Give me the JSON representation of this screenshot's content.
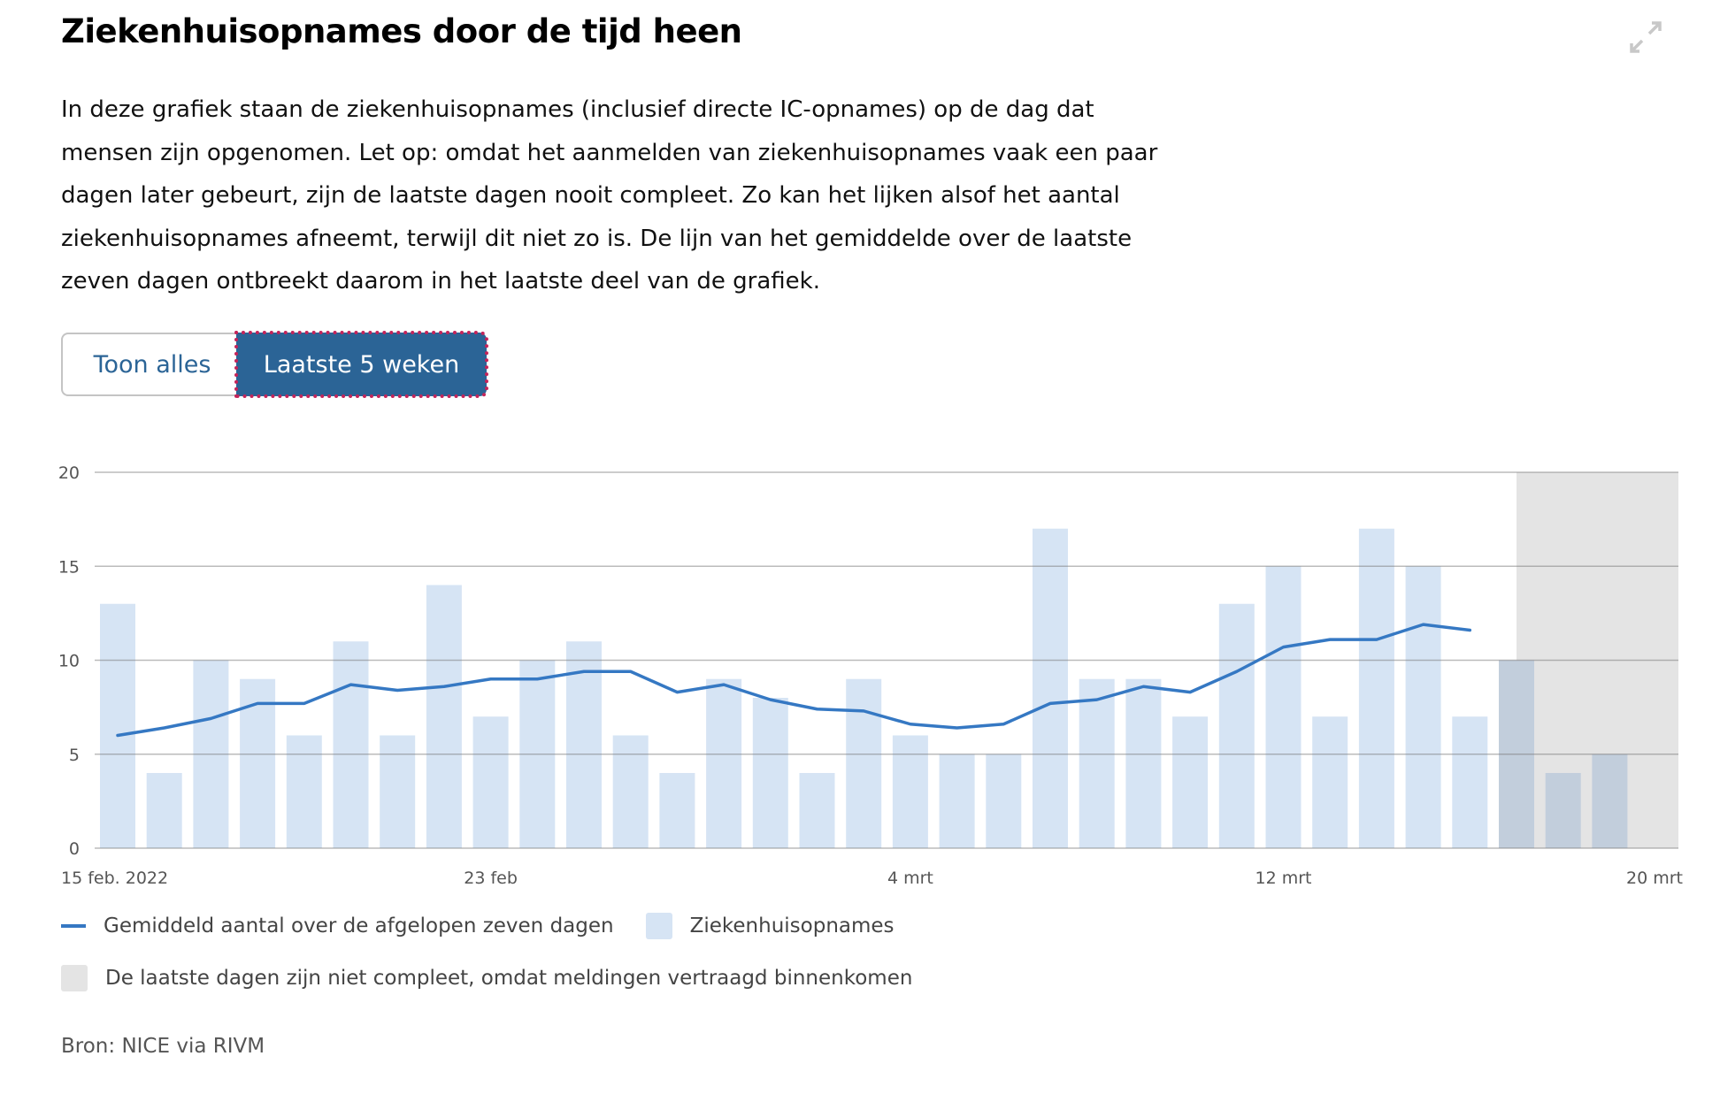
{
  "title": "Ziekenhuisopnames door de tijd heen",
  "description": "In deze grafiek staan de ziekenhuisopnames (inclusief directe IC-opnames) op de dag dat mensen zijn opgenomen. Let op: omdat het aanmelden van ziekenhuisopnames vaak een paar dagen later gebeurt, zijn de laatste dagen nooit compleet. Zo kan het lijken alsof het aantal ziekenhuisopnames afneemt, terwijl dit niet zo is. De lijn van het gemiddelde over de laatste zeven dagen ontbreekt daarom in het laatste deel van de grafiek.",
  "expand_icon": "expand-arrows-icon",
  "buttons": {
    "show_all": "Toon alles",
    "last_5_weeks": "Laatste 5 weken",
    "selected": "last_5_weeks"
  },
  "colors": {
    "bar": "#d6e4f4",
    "line": "#3578c3",
    "incomplete": "#e4e4e4",
    "button_active": "#2b6496",
    "focus": "#c4245a"
  },
  "chart_data": {
    "type": "bar",
    "start_date": "2022-02-15",
    "end_date": "2022-03-19",
    "ylim": [
      0,
      20
    ],
    "yticks": [
      0,
      5,
      10,
      15,
      20
    ],
    "grid": true,
    "xticks": [
      {
        "date": "2022-02-15",
        "label": "15 feb. 2022"
      },
      {
        "date": "2022-02-23",
        "label": "23 feb"
      },
      {
        "date": "2022-03-04",
        "label": "4 mrt"
      },
      {
        "date": "2022-03-12",
        "label": "12 mrt"
      },
      {
        "date": "2022-03-20",
        "label": "20 mrt"
      }
    ],
    "series": [
      {
        "name": "Ziekenhuisopnames",
        "type": "bar",
        "values": [
          13,
          4,
          10,
          9,
          6,
          11,
          6,
          14,
          7,
          10,
          11,
          6,
          4,
          9,
          8,
          4,
          9,
          6,
          5,
          5,
          17,
          9,
          9,
          7,
          13,
          15,
          7,
          17,
          15,
          7,
          10,
          4,
          5
        ]
      },
      {
        "name": "Gemiddeld aantal over de afgelopen zeven dagen",
        "type": "line",
        "values": [
          6.0,
          6.4,
          6.9,
          7.7,
          7.7,
          8.7,
          8.4,
          8.6,
          9.0,
          9.0,
          9.4,
          9.4,
          8.3,
          8.7,
          7.9,
          7.4,
          7.3,
          6.6,
          6.4,
          6.6,
          7.7,
          7.9,
          8.6,
          8.3,
          9.4,
          10.7,
          11.1,
          11.1,
          11.9,
          11.6
        ]
      }
    ],
    "incomplete_from": "2022-03-17",
    "legend": [
      {
        "label": "Gemiddeld aantal over de afgelopen zeven dagen"
      },
      {
        "label": "Ziekenhuisopnames"
      },
      {
        "label": "De laatste dagen zijn niet compleet, omdat meldingen vertraagd binnenkomen"
      }
    ],
    "legend_position": "bottom"
  },
  "source": "Bron: NICE via RIVM"
}
